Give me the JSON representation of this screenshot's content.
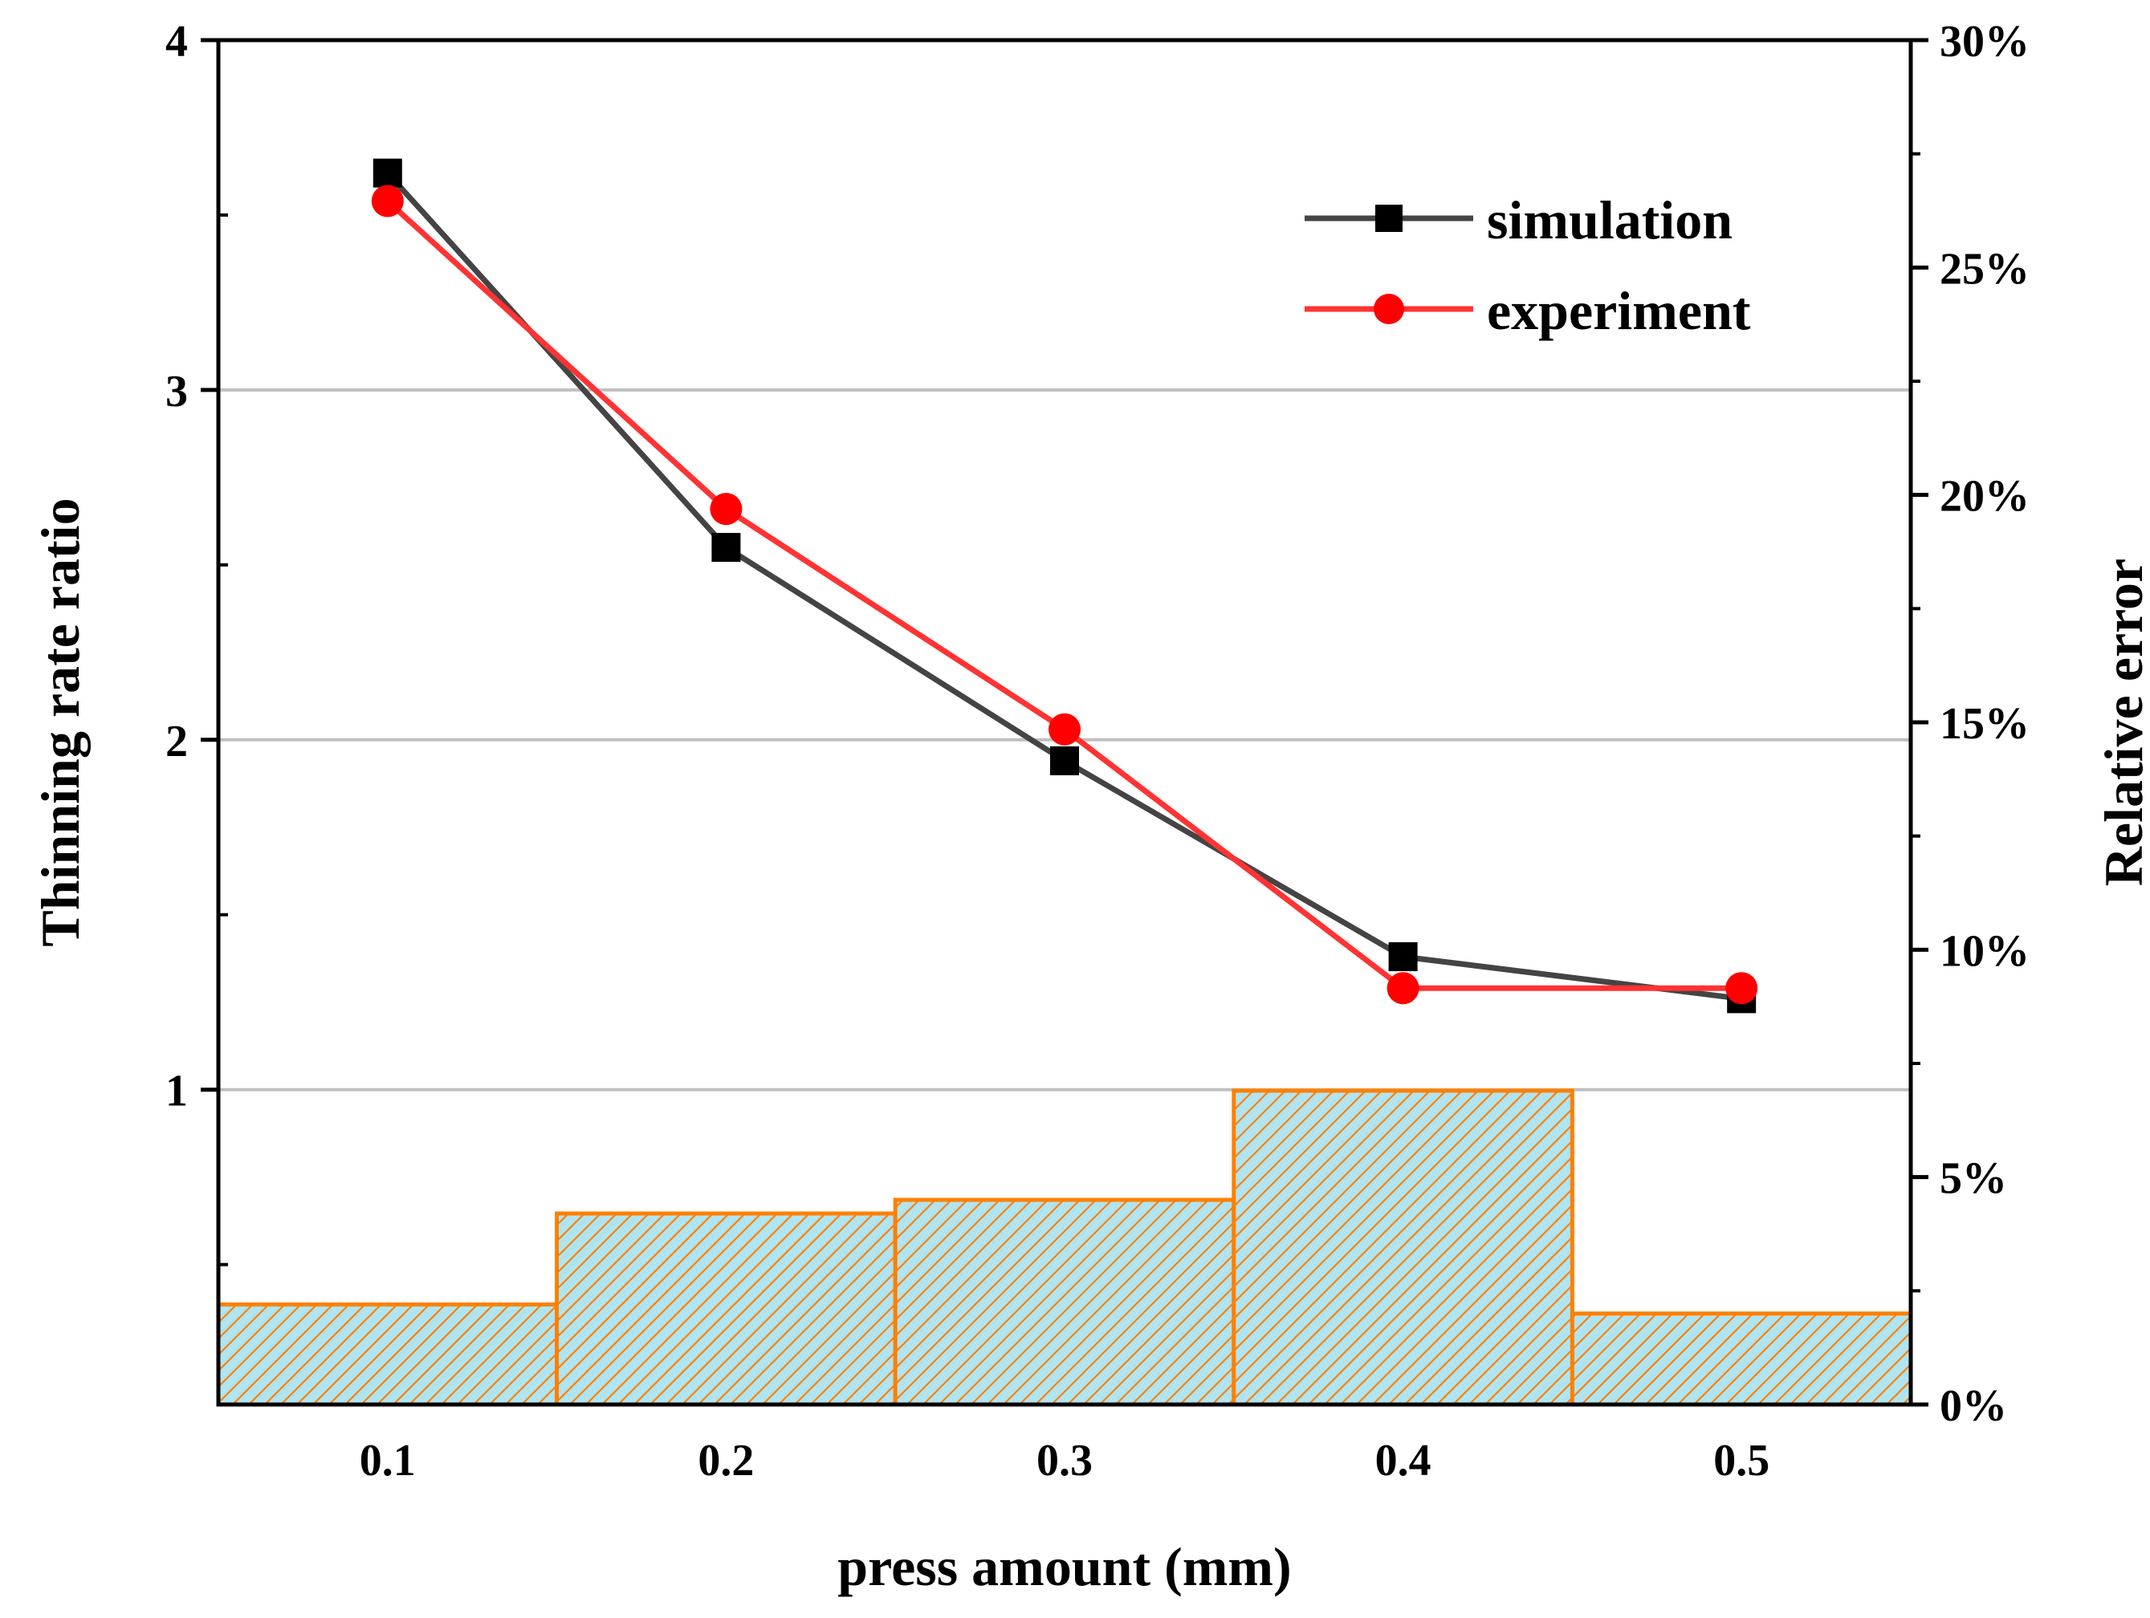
{
  "chart_data": {
    "type": "line+bar",
    "x_title": "press amount (mm)",
    "y_left_title": "Thinning rate ratio",
    "y_right_title": "Relative error",
    "x_categories": [
      "0.1",
      "0.2",
      "0.3",
      "0.4",
      "0.5"
    ],
    "x_values": [
      0.1,
      0.2,
      0.3,
      0.4,
      0.5
    ],
    "x_range": [
      0.05,
      0.55
    ],
    "y_left_range": [
      0.0,
      4.0
    ],
    "y_left_visible_min": 0.1,
    "y_left_ticks": [
      1,
      2,
      3,
      4
    ],
    "y_left_tick_labels": [
      "1",
      "2",
      "3",
      "4"
    ],
    "y_right_range": [
      0,
      30
    ],
    "y_right_ticks": [
      0,
      5,
      10,
      15,
      20,
      25,
      30
    ],
    "y_right_tick_labels": [
      "0%",
      "5%",
      "10%",
      "15%",
      "20%",
      "25%",
      "30%"
    ],
    "gridlines_left": [
      1,
      2,
      3
    ],
    "series": [
      {
        "name": "simulation",
        "axis": "left",
        "marker": "square",
        "color": "#000000",
        "line_color": "#444444",
        "values": [
          3.62,
          2.55,
          1.94,
          1.38,
          1.26
        ]
      },
      {
        "name": "experiment",
        "axis": "left",
        "marker": "circle",
        "color": "#ff0000",
        "line_color": "#ff3333",
        "values": [
          3.54,
          2.66,
          2.03,
          1.29,
          1.29
        ]
      }
    ],
    "bars": {
      "name": "relative error",
      "axis": "right",
      "unit": "%",
      "values": [
        2.2,
        4.2,
        4.5,
        6.9,
        2.0
      ],
      "fill": "#b0e4f0",
      "edge_color": "#ff8000",
      "hatch": "diagonal"
    },
    "legend": {
      "position": "top-right",
      "entries": [
        "simulation",
        "experiment"
      ]
    }
  }
}
